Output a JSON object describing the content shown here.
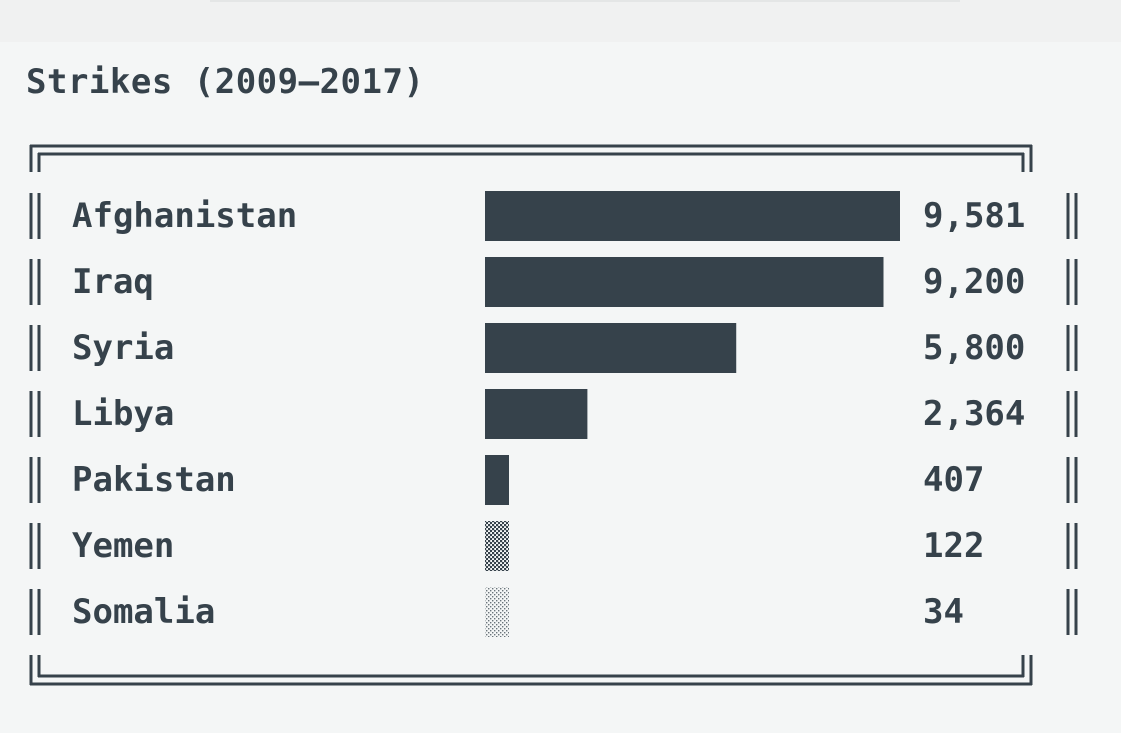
{
  "chart_data": {
    "type": "bar",
    "orientation": "horizontal",
    "title": "Strikes (2009–2017)",
    "categories": [
      "Afghanistan",
      "Iraq",
      "Syria",
      "Libya",
      "Pakistan",
      "Yemen",
      "Somalia"
    ],
    "values": [
      9581,
      9200,
      5800,
      2364,
      407,
      122,
      34
    ],
    "value_labels": [
      "9,581",
      "9,200",
      "5,800",
      "2,364",
      "407",
      "122",
      "34"
    ],
    "xlim": [
      0,
      9581
    ],
    "grid": false,
    "legend": "none",
    "bar_styles": [
      "solid",
      "solid",
      "solid",
      "solid",
      "solid",
      "dense-dots",
      "light-dots"
    ]
  },
  "colors": {
    "ink": "#36424b",
    "background": "#f4f6f6"
  }
}
